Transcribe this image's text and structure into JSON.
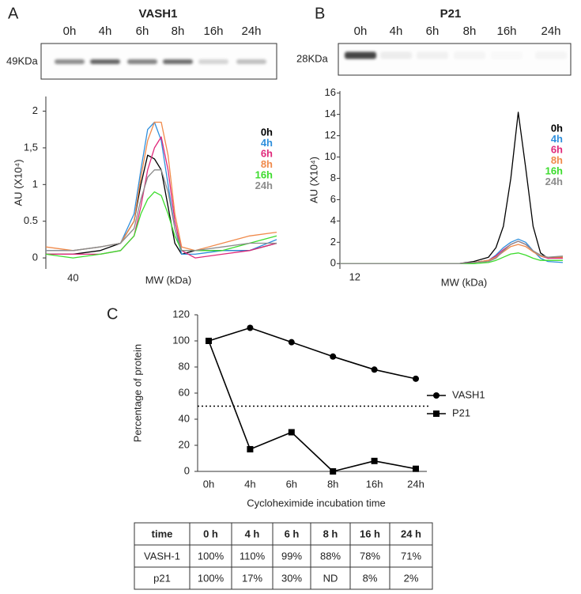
{
  "blots": [
    {
      "panel": "A",
      "title": "VASH1",
      "lanes": [
        "0h",
        "4h",
        "6h",
        "8h",
        "16h",
        "24h"
      ],
      "marker": "49KDa",
      "band_intensity": [
        0.55,
        0.75,
        0.6,
        0.7,
        0.2,
        0.3
      ]
    },
    {
      "panel": "B",
      "title": "P21",
      "lanes": [
        "0h",
        "4h",
        "6h",
        "8h",
        "16h",
        "24h"
      ],
      "marker": "28KDa",
      "band_intensity": [
        0.9,
        0.08,
        0.06,
        0.04,
        0.02,
        0.04
      ]
    }
  ],
  "chart_data": [
    {
      "type": "line",
      "ylabel": "AU (X10⁴)",
      "xlabel": "MW (kDa)",
      "x": [
        36,
        40,
        44,
        47,
        49,
        50,
        51,
        52,
        53,
        54,
        55,
        56,
        58,
        62,
        66,
        70
      ],
      "xlim": [
        36,
        70
      ],
      "xticks": [
        40
      ],
      "ylim": [
        -0.15,
        2.2
      ],
      "yticks": [
        0,
        0.5,
        1,
        {
          "value": 1.5,
          "label": "1,5"
        },
        2
      ],
      "series": [
        {
          "name": "0h",
          "color": "#000000",
          "values": [
            0.05,
            0.05,
            0.1,
            0.2,
            0.5,
            1.0,
            1.4,
            1.35,
            1.2,
            0.7,
            0.2,
            0.05,
            0.1,
            0.1,
            0.1,
            0.2
          ]
        },
        {
          "name": "4h",
          "color": "#2f8fdc",
          "values": [
            0.1,
            0.1,
            0.15,
            0.2,
            0.6,
            1.2,
            1.75,
            1.85,
            1.6,
            1.0,
            0.4,
            0.05,
            0.05,
            0.1,
            0.1,
            0.25
          ]
        },
        {
          "name": "6h",
          "color": "#e0287a",
          "values": [
            0.05,
            0.05,
            0.05,
            0.1,
            0.3,
            0.7,
            1.2,
            1.5,
            1.65,
            1.2,
            0.5,
            0.1,
            0.0,
            0.05,
            0.1,
            0.2
          ]
        },
        {
          "name": "8h",
          "color": "#f08a4b",
          "values": [
            0.15,
            0.1,
            0.15,
            0.2,
            0.5,
            1.1,
            1.6,
            1.85,
            1.85,
            1.4,
            0.6,
            0.15,
            0.1,
            0.2,
            0.3,
            0.35
          ]
        },
        {
          "name": "16h",
          "color": "#3ddc2e",
          "values": [
            0.05,
            0.0,
            0.05,
            0.1,
            0.3,
            0.6,
            0.8,
            0.9,
            0.85,
            0.6,
            0.3,
            0.1,
            0.1,
            0.1,
            0.2,
            0.3
          ]
        },
        {
          "name": "24h",
          "color": "#8c8c8c",
          "values": [
            0.1,
            0.1,
            0.15,
            0.2,
            0.4,
            0.8,
            1.1,
            1.2,
            1.2,
            0.9,
            0.4,
            0.1,
            0.1,
            0.15,
            0.2,
            0.2
          ]
        }
      ]
    },
    {
      "type": "line",
      "ylabel": "AU (X10⁴)",
      "xlabel": "MW (kDa)",
      "x": [
        10,
        14,
        18,
        22,
        26,
        28,
        30,
        31,
        32,
        33,
        34,
        35,
        36,
        37,
        38,
        40
      ],
      "xlim": [
        10,
        40
      ],
      "xticks": [
        12
      ],
      "ylim": [
        -0.5,
        16.2
      ],
      "yticks": [
        0,
        2,
        4,
        6,
        8,
        10,
        12,
        14,
        16
      ],
      "series": [
        {
          "name": "0h",
          "color": "#000000",
          "values": [
            0,
            0,
            0,
            0,
            0,
            0.2,
            0.6,
            1.5,
            3.5,
            8,
            14.2,
            9,
            3.5,
            1,
            0.5,
            0.6
          ]
        },
        {
          "name": "4h",
          "color": "#2f8fdc",
          "values": [
            0,
            0,
            0,
            0,
            0,
            0.1,
            0.3,
            0.8,
            1.5,
            2.0,
            2.3,
            2.0,
            1.2,
            0.5,
            0.2,
            0.1
          ]
        },
        {
          "name": "6h",
          "color": "#e0287a",
          "values": [
            0,
            0,
            0,
            0,
            0,
            0.1,
            0.3,
            0.7,
            1.3,
            1.8,
            2.1,
            1.8,
            1.2,
            0.7,
            0.5,
            0.5
          ]
        },
        {
          "name": "8h",
          "color": "#f08a4b",
          "values": [
            0,
            0,
            0,
            0,
            0,
            0.1,
            0.3,
            0.6,
            1.1,
            1.6,
            1.8,
            1.6,
            1.1,
            0.7,
            0.6,
            0.6
          ]
        },
        {
          "name": "16h",
          "color": "#3ddc2e",
          "values": [
            0,
            0,
            0,
            0,
            0,
            0,
            0.1,
            0.3,
            0.6,
            0.9,
            1.0,
            0.8,
            0.5,
            0.3,
            0.3,
            0.3
          ]
        },
        {
          "name": "24h",
          "color": "#8c8c8c",
          "values": [
            0,
            0,
            0,
            0,
            0,
            0.1,
            0.2,
            0.5,
            1.2,
            1.8,
            2.1,
            1.8,
            1.2,
            0.8,
            0.6,
            0.7
          ]
        }
      ]
    },
    {
      "type": "line",
      "panel": "C",
      "ylabel": "Percentage of protein",
      "xlabel": "Cycloheximide incubation time",
      "categories": [
        "0h",
        "4h",
        "6h",
        "8h",
        "16h",
        "24h"
      ],
      "ylim": [
        0,
        120
      ],
      "yticks": [
        0,
        20,
        40,
        60,
        80,
        100,
        120
      ],
      "reference_line": 50,
      "series": [
        {
          "name": "VASH1",
          "color": "#000000",
          "marker": "circle",
          "values": [
            100,
            110,
            99,
            88,
            78,
            71
          ]
        },
        {
          "name": "P21",
          "color": "#000000",
          "marker": "square",
          "values": [
            100,
            17,
            30,
            0,
            8,
            2
          ]
        }
      ]
    }
  ],
  "table": {
    "header": [
      "time",
      "0 h",
      "4 h",
      "6 h",
      "8 h",
      "16 h",
      "24 h"
    ],
    "rows": [
      [
        "VASH-1",
        "100%",
        "110%",
        "99%",
        "88%",
        "78%",
        "71%"
      ],
      [
        "p21",
        "100%",
        "17%",
        "30%",
        "ND",
        "8%",
        "2%"
      ]
    ]
  }
}
